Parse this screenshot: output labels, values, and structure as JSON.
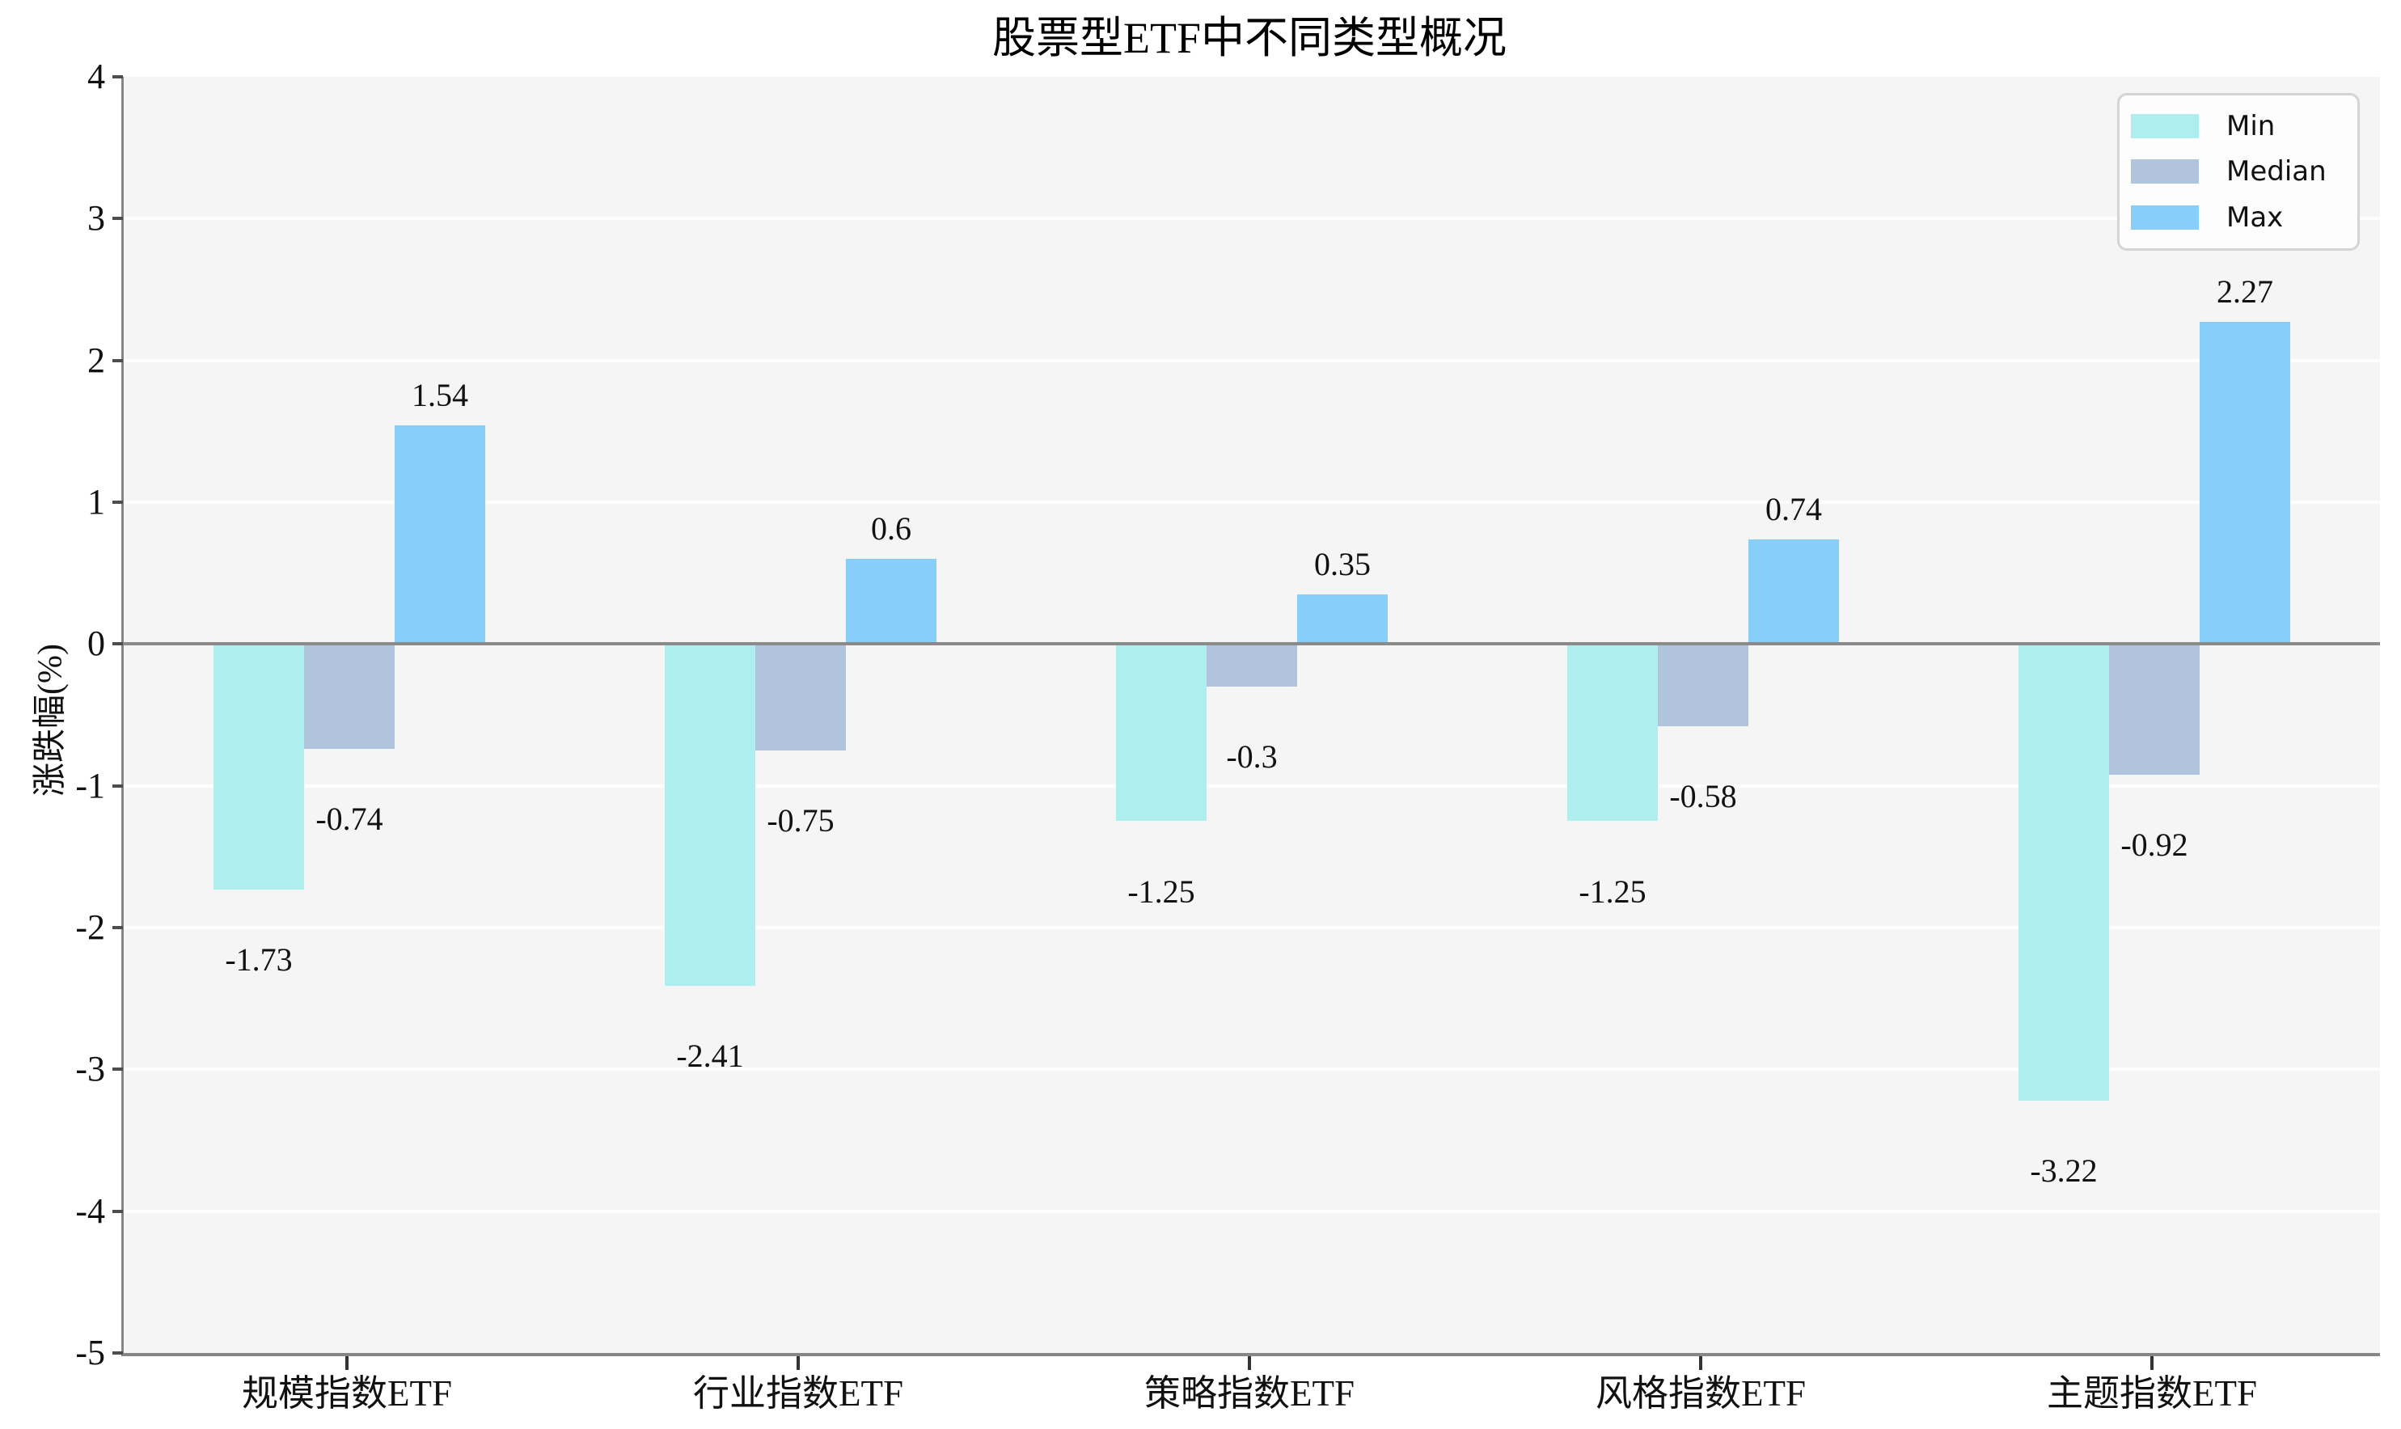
{
  "chart_data": {
    "type": "bar",
    "title": "股票型ETF中不同类型概况",
    "ylabel": "涨跌幅(%)",
    "xlabel": "",
    "categories": [
      "规模指数ETF",
      "行业指数ETF",
      "策略指数ETF",
      "风格指数ETF",
      "主题指数ETF"
    ],
    "series": [
      {
        "name": "Min",
        "color": "#AFEEEE",
        "values": [
          -1.73,
          -2.41,
          -1.25,
          -1.25,
          -3.22
        ],
        "labels": [
          "-1.73",
          "-2.41",
          "-1.25",
          "-1.25",
          "-3.22"
        ]
      },
      {
        "name": "Median",
        "color": "#B0C4DE",
        "values": [
          -0.74,
          -0.75,
          -0.3,
          -0.58,
          -0.92
        ],
        "labels": [
          "-0.74",
          "-0.75",
          "-0.3",
          "-0.58",
          "-0.92"
        ]
      },
      {
        "name": "Max",
        "color": "#87CEFA",
        "values": [
          1.54,
          0.6,
          0.35,
          0.74,
          2.27
        ],
        "labels": [
          "1.54",
          "0.6",
          "0.35",
          "0.74",
          "2.27"
        ]
      }
    ],
    "ylim": [
      -5,
      4
    ],
    "yticks": [
      4,
      3,
      2,
      1,
      0,
      -1,
      -2,
      -3,
      -4,
      -5
    ],
    "grid": true,
    "legend_position": "upper right",
    "colors": {
      "plot_background": "#f5f5f5",
      "grid_line": "#fdfdfd",
      "zero_line": "#8a8a8a",
      "axis_spine": "#868686",
      "text": "#111111"
    }
  }
}
